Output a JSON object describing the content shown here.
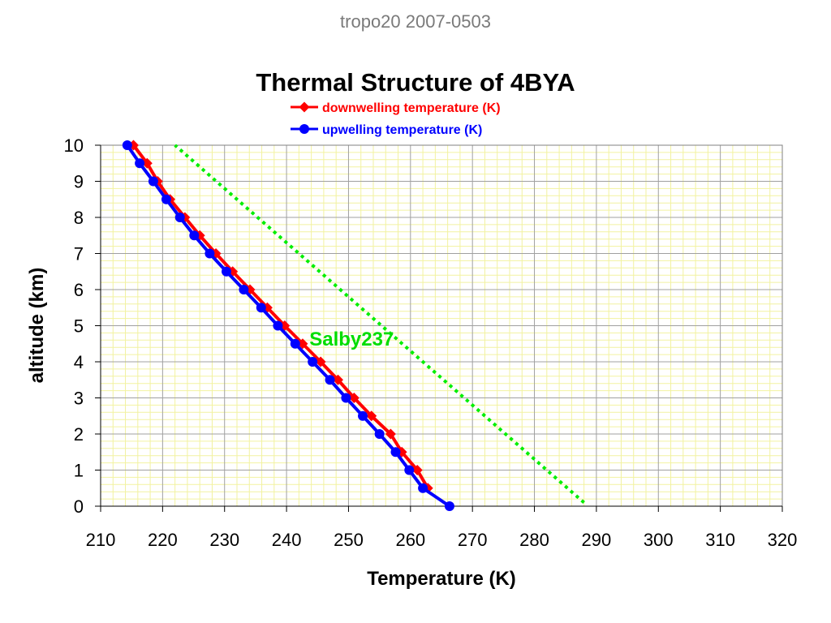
{
  "header": {
    "text": "tropo20 2007-0503"
  },
  "colors": {
    "downwelling": "#ff0000",
    "upwelling": "#0000ff",
    "reference": "#00ee00",
    "grid_major": "#a0a0a0",
    "grid_minor": "#f2f2a0",
    "frame": "#808080"
  },
  "chart_data": {
    "type": "line",
    "title": "Thermal Structure of 4BYA",
    "xlabel": "Temperature (K)",
    "ylabel": "altitude (km)",
    "xlim": [
      210,
      320
    ],
    "ylim": [
      0,
      10
    ],
    "xticks": [
      210,
      220,
      230,
      240,
      250,
      260,
      270,
      280,
      290,
      300,
      310,
      320
    ],
    "yticks": [
      0,
      1,
      2,
      3,
      4,
      5,
      6,
      7,
      8,
      9,
      10
    ],
    "grid": true,
    "legend_position": "top-center",
    "series": [
      {
        "name": "downwelling temperature (K)",
        "marker": "diamond",
        "color": "#ff0000",
        "points": [
          [
            262.8,
            0.5
          ],
          [
            261.1,
            1.0
          ],
          [
            258.6,
            1.5
          ],
          [
            256.8,
            2.0
          ],
          [
            253.7,
            2.5
          ],
          [
            250.9,
            3.0
          ],
          [
            248.3,
            3.5
          ],
          [
            245.5,
            4.0
          ],
          [
            242.6,
            4.5
          ],
          [
            239.7,
            5.0
          ],
          [
            236.9,
            5.5
          ],
          [
            234.1,
            6.0
          ],
          [
            231.3,
            6.5
          ],
          [
            228.6,
            7.0
          ],
          [
            226.0,
            7.5
          ],
          [
            223.6,
            8.0
          ],
          [
            221.2,
            8.5
          ],
          [
            219.2,
            9.0
          ],
          [
            217.5,
            9.5
          ],
          [
            215.3,
            10.0
          ]
        ]
      },
      {
        "name": "upwelling temperature (K)",
        "marker": "circle",
        "color": "#0000ff",
        "points": [
          [
            266.3,
            0.0
          ],
          [
            262.0,
            0.5
          ],
          [
            259.8,
            1.0
          ],
          [
            257.6,
            1.5
          ],
          [
            255.0,
            2.0
          ],
          [
            252.3,
            2.5
          ],
          [
            249.6,
            3.0
          ],
          [
            247.0,
            3.5
          ],
          [
            244.2,
            4.0
          ],
          [
            241.4,
            4.5
          ],
          [
            238.6,
            5.0
          ],
          [
            235.9,
            5.5
          ],
          [
            233.1,
            6.0
          ],
          [
            230.3,
            6.5
          ],
          [
            227.6,
            7.0
          ],
          [
            225.1,
            7.5
          ],
          [
            222.8,
            8.0
          ],
          [
            220.6,
            8.5
          ],
          [
            218.5,
            9.0
          ],
          [
            216.3,
            9.5
          ],
          [
            214.3,
            10.0
          ]
        ]
      },
      {
        "name": "",
        "style": "dotted",
        "color": "#00ee00",
        "points": [
          [
            288.0,
            0.1
          ],
          [
            222.0,
            10.0
          ]
        ]
      }
    ],
    "annotations": [
      {
        "text": "Salby237",
        "x": 250.5,
        "y": 4.45,
        "color": "#00dd00"
      }
    ]
  }
}
